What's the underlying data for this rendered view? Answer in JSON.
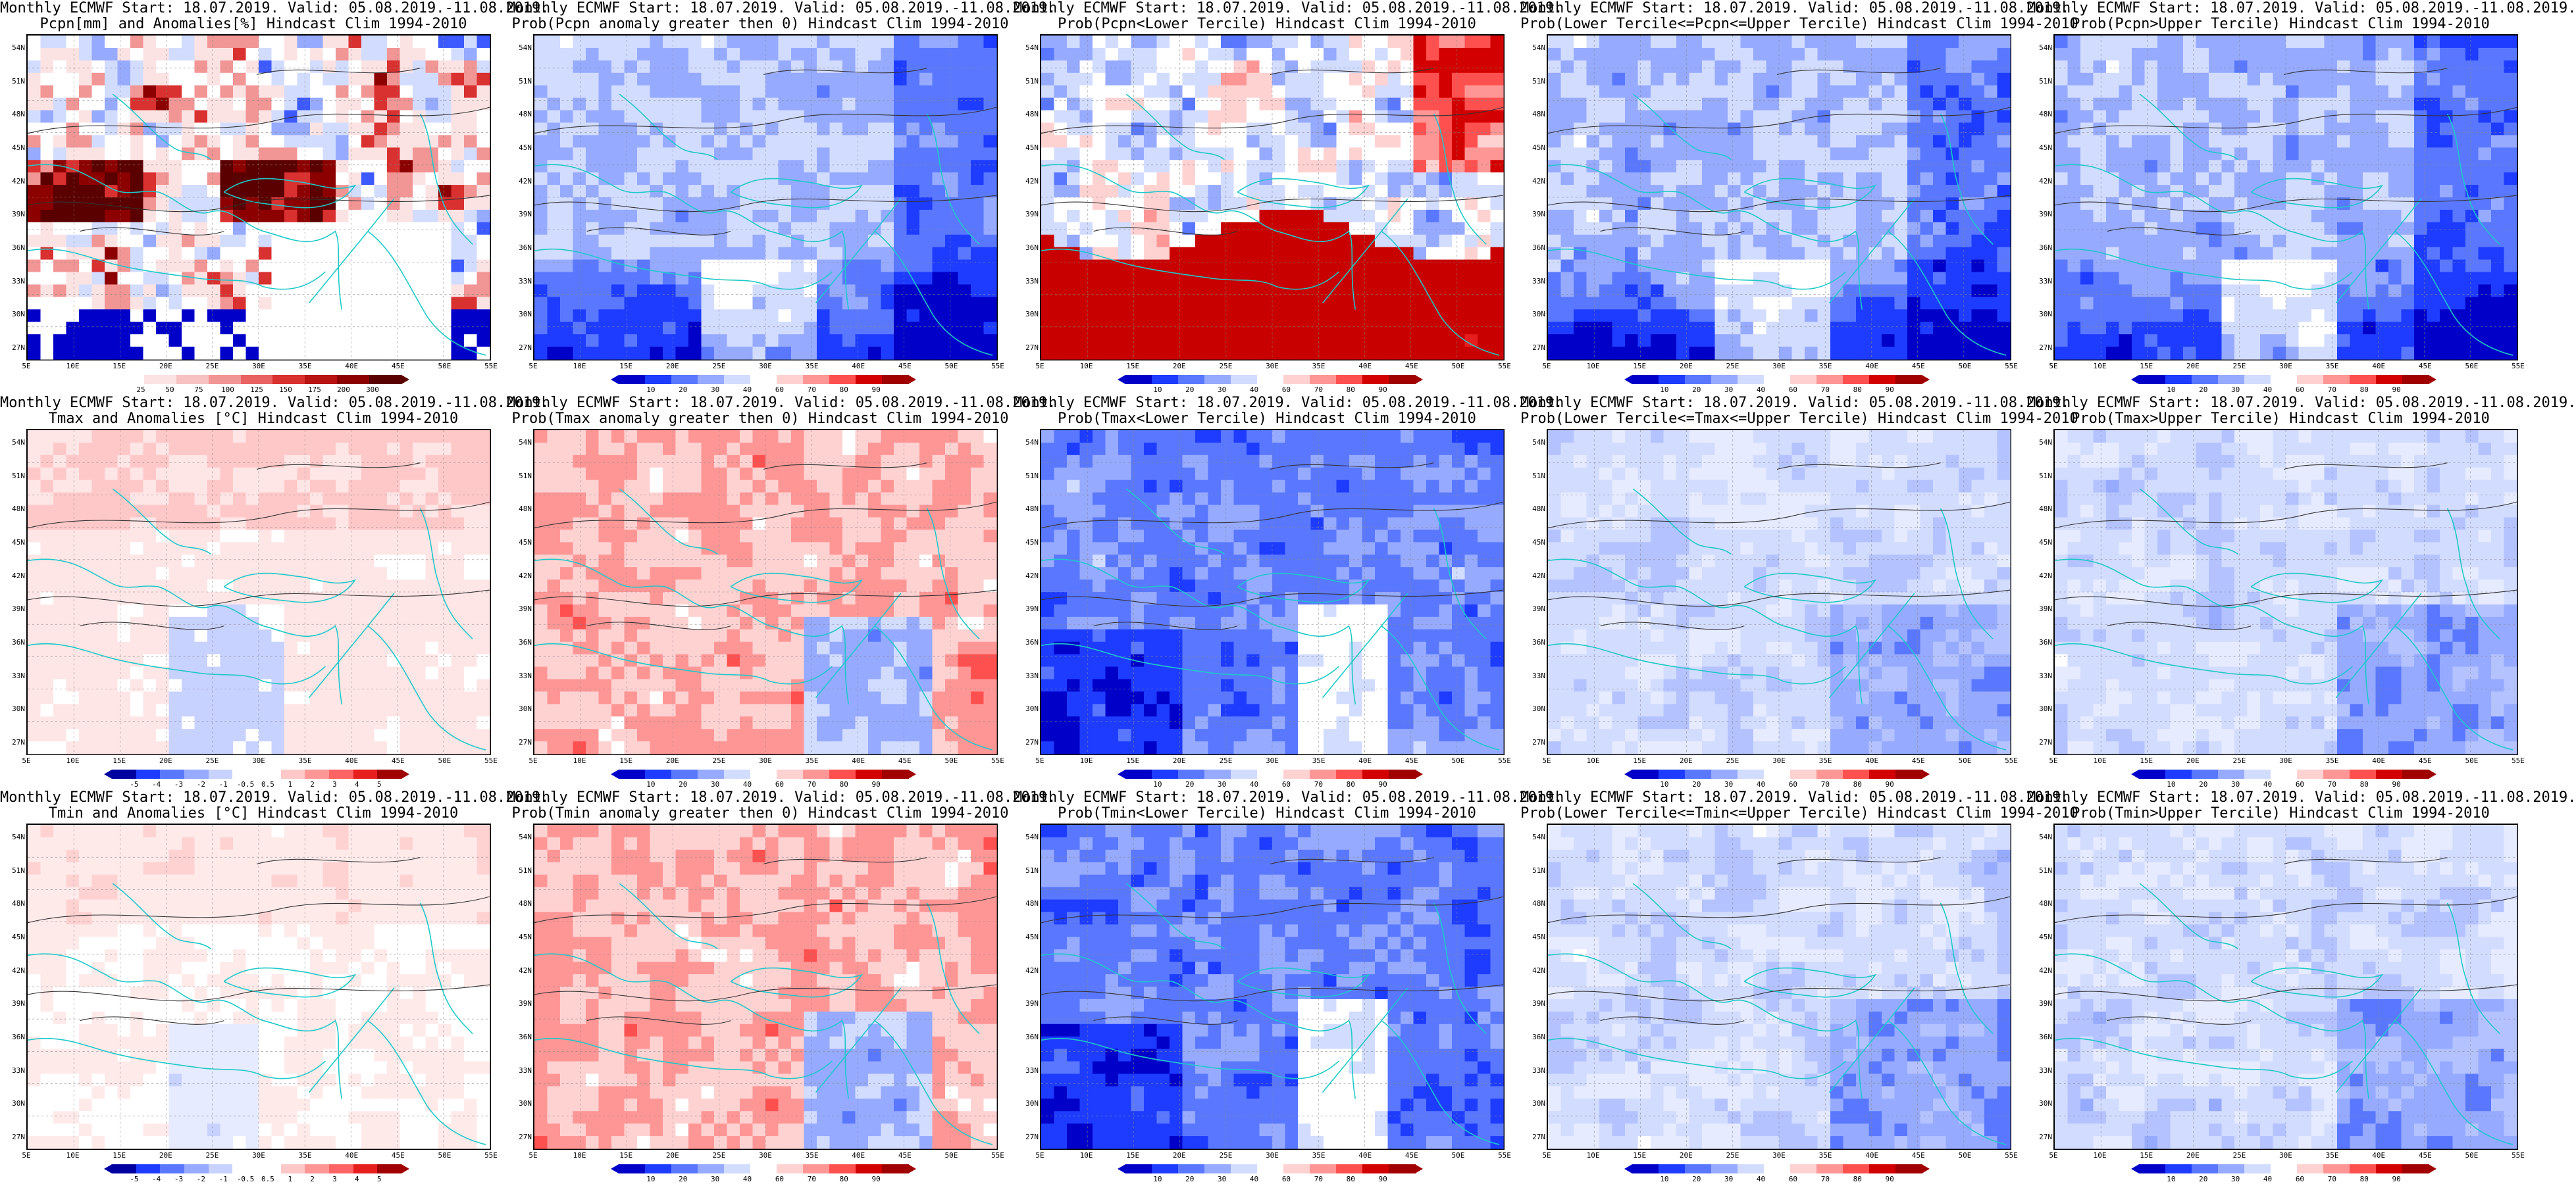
{
  "panels": [
    {
      "id": "p11",
      "title1": "Monthly ECMWF Start: 18.07.2019. Valid: 05.08.2019.-11.08.2019.",
      "title2": "Pcpn[mm] and Anomalies[%] Hindcast Clim 1994-2010",
      "kind": "pcpn",
      "colorbar": [
        "25",
        "50",
        "75",
        "100",
        "125",
        "150",
        "175",
        "200",
        "300"
      ]
    },
    {
      "id": "p12",
      "title1": "Monthly ECMWF Start: 18.07.2019. Valid: 05.08.2019.-11.08.2019.",
      "title2": "Prob(Pcpn anomaly greater then 0) Hindcast Clim 1994-2010",
      "kind": "bluehi",
      "colorbar": [
        "10",
        "20",
        "30",
        "40",
        "60",
        "70",
        "80",
        "90"
      ]
    },
    {
      "id": "p13",
      "title1": "Monthly ECMWF Start: 18.07.2019. Valid: 05.08.2019.-11.08.2019.",
      "title2": "Prob(Pcpn<Lower Tercile) Hindcast Clim 1994-2010",
      "kind": "redsouth",
      "colorbar": [
        "10",
        "20",
        "30",
        "40",
        "60",
        "70",
        "80",
        "90"
      ]
    },
    {
      "id": "p14",
      "title1": "Monthly ECMWF Start: 18.07.2019. Valid: 05.08.2019.-11.08.2019.",
      "title2": "Prob(Lower Tercile<=Pcpn<=Upper Tercile) Hindcast Clim 1994-2010",
      "kind": "bluehi",
      "colorbar": [
        "10",
        "20",
        "30",
        "40",
        "60",
        "70",
        "80",
        "90"
      ]
    },
    {
      "id": "p15",
      "title1": "Monthly ECMWF Start: 18.07.2019. Valid: 05.08.2019.-11.08.2019.",
      "title2": "Prob(Pcpn>Upper Tercile) Hindcast Clim 1994-2010",
      "kind": "bluehi",
      "colorbar": [
        "10",
        "20",
        "30",
        "40",
        "60",
        "70",
        "80",
        "90"
      ]
    },
    {
      "id": "p21",
      "title1": "Monthly ECMWF Start: 18.07.2019. Valid: 05.08.2019.-11.08.2019.",
      "title2": "Tmax and Anomalies [°C] Hindcast Clim 1994-2010",
      "kind": "warm",
      "colorbar": [
        "-5",
        "-4",
        "-3",
        "-2",
        "-1",
        "-0.5",
        "0.5",
        "1",
        "2",
        "3",
        "4",
        "5"
      ]
    },
    {
      "id": "p22",
      "title1": "Monthly ECMWF Start: 18.07.2019. Valid: 05.08.2019.-11.08.2019.",
      "title2": "Prob(Tmax anomaly greater then 0) Hindcast Clim 1994-2010",
      "kind": "warm2",
      "colorbar": [
        "10",
        "20",
        "30",
        "40",
        "60",
        "70",
        "80",
        "90"
      ]
    },
    {
      "id": "p23",
      "title1": "Monthly ECMWF Start: 18.07.2019. Valid: 05.08.2019.-11.08.2019.",
      "title2": "Prob(Tmax<Lower Tercile) Hindcast Clim 1994-2010",
      "kind": "blue",
      "colorbar": [
        "10",
        "20",
        "30",
        "40",
        "60",
        "70",
        "80",
        "90"
      ]
    },
    {
      "id": "p24",
      "title1": "Monthly ECMWF Start: 18.07.2019. Valid: 05.08.2019.-11.08.2019.",
      "title2": "Prob(Lower Tercile<=Tmax<=Upper Tercile) Hindcast Clim 1994-2010",
      "kind": "lightblue",
      "colorbar": [
        "10",
        "20",
        "30",
        "40",
        "60",
        "70",
        "80",
        "90"
      ]
    },
    {
      "id": "p25",
      "title1": "Monthly ECMWF Start: 18.07.2019. Valid: 05.08.2019.-11.08.2019.",
      "title2": "Prob(Tmax>Upper Tercile) Hindcast Clim 1994-2010",
      "kind": "lightblue",
      "colorbar": [
        "10",
        "20",
        "30",
        "40",
        "60",
        "70",
        "80",
        "90"
      ]
    },
    {
      "id": "p31",
      "title1": "Monthly ECMWF Start: 18.07.2019. Valid: 05.08.2019.-11.08.2019.",
      "title2": "Tmin and Anomalies [°C] Hindcast Clim 1994-2010",
      "kind": "warmlight",
      "colorbar": [
        "-5",
        "-4",
        "-3",
        "-2",
        "-1",
        "-0.5",
        "0.5",
        "1",
        "2",
        "3",
        "4",
        "5"
      ]
    },
    {
      "id": "p32",
      "title1": "Monthly ECMWF Start: 18.07.2019. Valid: 05.08.2019.-11.08.2019.",
      "title2": "Prob(Tmin anomaly greater then 0) Hindcast Clim 1994-2010",
      "kind": "warm2",
      "colorbar": [
        "10",
        "20",
        "30",
        "40",
        "60",
        "70",
        "80",
        "90"
      ]
    },
    {
      "id": "p33",
      "title1": "Monthly ECMWF Start: 18.07.2019. Valid: 05.08.2019.-11.08.2019.",
      "title2": "Prob(Tmin<Lower Tercile) Hindcast Clim 1994-2010",
      "kind": "blue",
      "colorbar": [
        "10",
        "20",
        "30",
        "40",
        "60",
        "70",
        "80",
        "90"
      ]
    },
    {
      "id": "p34",
      "title1": "Monthly ECMWF Start: 18.07.2019. Valid: 05.08.2019.-11.08.2019.",
      "title2": "Prob(Lower Tercile<=Tmin<=Upper Tercile) Hindcast Clim 1994-2010",
      "kind": "lightblue",
      "colorbar": [
        "10",
        "20",
        "30",
        "40",
        "60",
        "70",
        "80",
        "90"
      ]
    },
    {
      "id": "p35",
      "title1": "Monthly ECMWF Start: 18.07.2019. Valid: 05.08.2019.-11.08.2019.",
      "title2": "Prob(Tmin>Upper Tercile) Hindcast Clim 1994-2010",
      "kind": "lightblue",
      "colorbar": [
        "10",
        "20",
        "30",
        "40",
        "60",
        "70",
        "80",
        "90"
      ]
    }
  ],
  "lat_labels": [
    "54N",
    "51N",
    "48N",
    "45N",
    "42N",
    "39N",
    "36N",
    "33N",
    "30N",
    "27N"
  ],
  "lon_labels": [
    "5E",
    "10E",
    "15E",
    "20E",
    "25E",
    "30E",
    "35E",
    "40E",
    "45E",
    "50E",
    "55E"
  ],
  "palettes": {
    "prob": [
      "#0000c8",
      "#1e3cff",
      "#5a78ff",
      "#96aaff",
      "#d2dcff",
      "#ffffff",
      "#ffd2d2",
      "#ff9696",
      "#ff5050",
      "#d20000",
      "#a00000"
    ],
    "anom": [
      "#0000a0",
      "#1e3cff",
      "#5a78ff",
      "#96aaff",
      "#c8d2ff",
      "#ffffff",
      "#ffffff",
      "#ffc8c8",
      "#ff9696",
      "#ff6464",
      "#e61e1e",
      "#a00000"
    ],
    "pcpn": [
      "#ffffff",
      "#fce3e3",
      "#f8c2c2",
      "#f29595",
      "#ea6363",
      "#d93030",
      "#b81212",
      "#8c0000",
      "#5a0000"
    ]
  }
}
